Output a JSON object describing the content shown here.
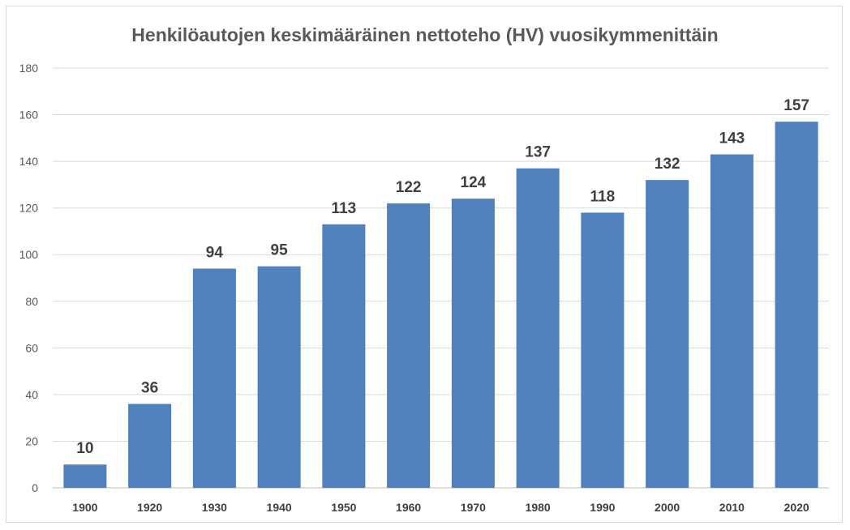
{
  "chart_data": {
    "type": "bar",
    "title": "Henkilöautojen keskimääräinen nettoteho (HV) vuosikymmenittäin",
    "xlabel": "",
    "ylabel": "",
    "categories": [
      "1900",
      "1920",
      "1930",
      "1940",
      "1950",
      "1960",
      "1970",
      "1980",
      "1990",
      "2000",
      "2010",
      "2020"
    ],
    "values": [
      10,
      36,
      94,
      95,
      113,
      122,
      124,
      137,
      118,
      132,
      143,
      157
    ],
    "ylim": [
      0,
      180
    ],
    "yticks": [
      "0",
      "20",
      "40",
      "60",
      "80",
      "100",
      "120",
      "140",
      "160",
      "180"
    ],
    "grid": true,
    "legend": "none",
    "data_labels": true,
    "colors": {
      "bar": "#4f81bd",
      "grid": "#d9d9d9",
      "title": "#595959",
      "label": "#404040"
    }
  }
}
